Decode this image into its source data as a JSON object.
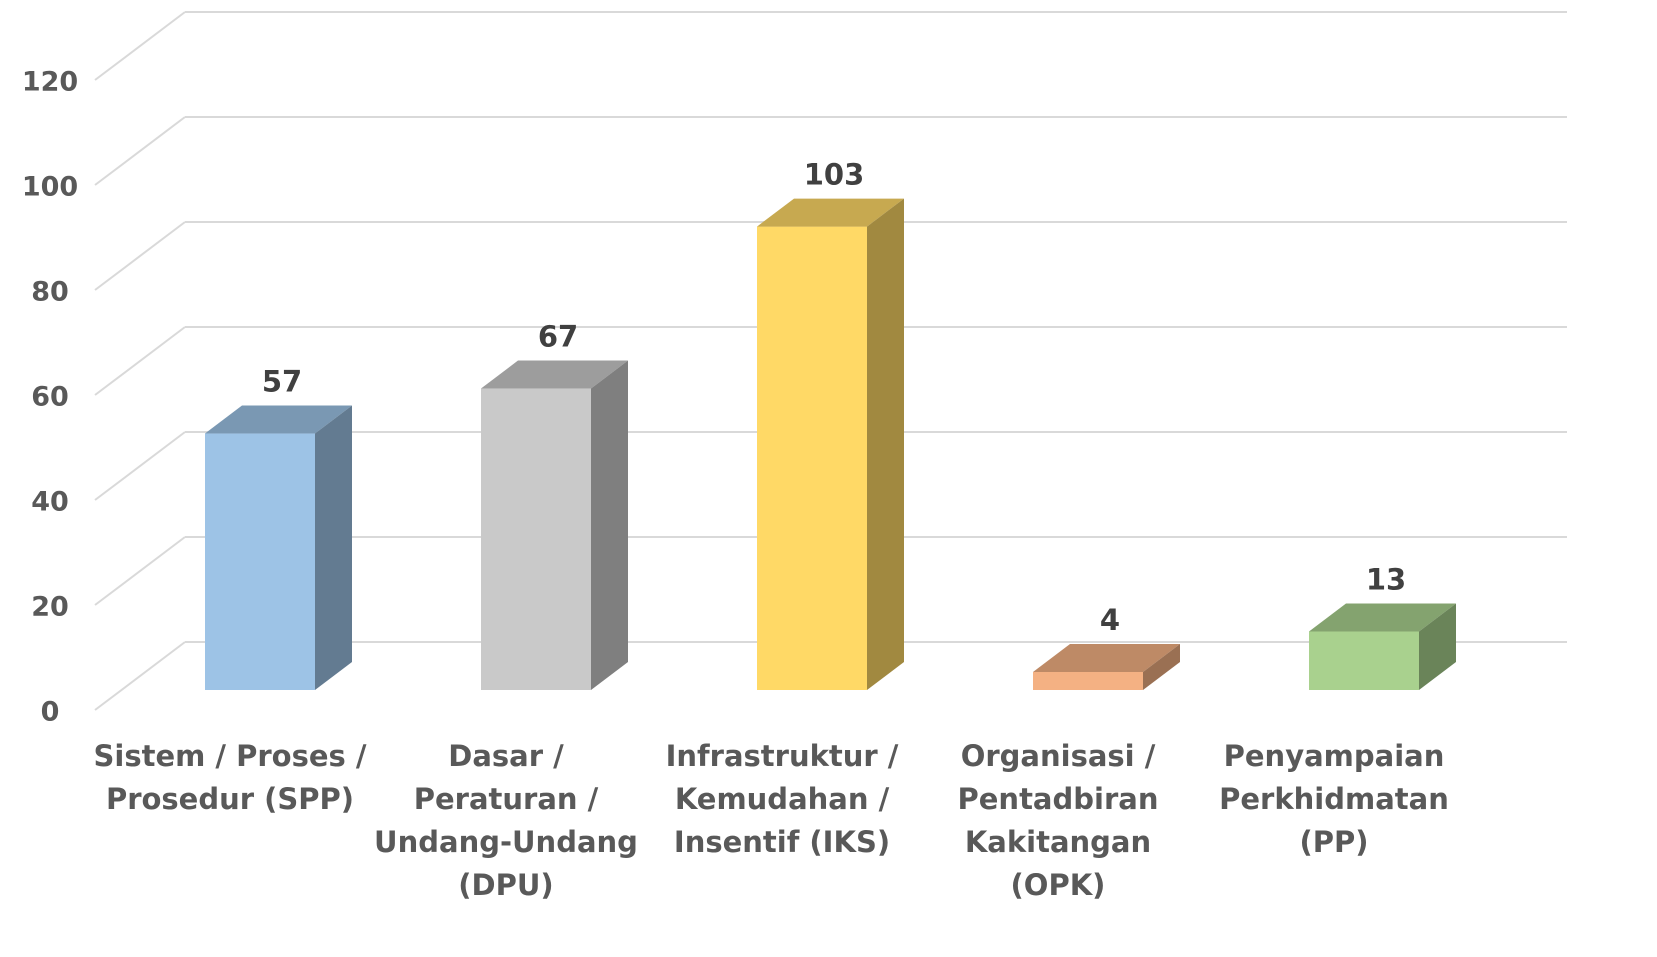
{
  "chart_data": {
    "type": "bar3d",
    "categories": [
      "Sistem / Proses /\nProsedur (SPP)",
      "Dasar /\nPeraturan /\nUndang-Undang\n(DPU)",
      "Infrastruktur /\nKemudahan /\nInsentif (IKS)",
      "Organisasi /\nPentadbiran\nKakitangan\n(OPK)",
      "Penyampaian\nPerkhidmatan\n(PP)"
    ],
    "values": [
      57,
      67,
      103,
      4,
      13
    ],
    "colors": [
      "#9dc3e6",
      "#c9c9c9",
      "#ffd966",
      "#f4b183",
      "#a9d18e"
    ],
    "ylim": [
      0,
      120
    ],
    "yticks": [
      0,
      20,
      40,
      60,
      80,
      100,
      120
    ],
    "grid": true
  }
}
